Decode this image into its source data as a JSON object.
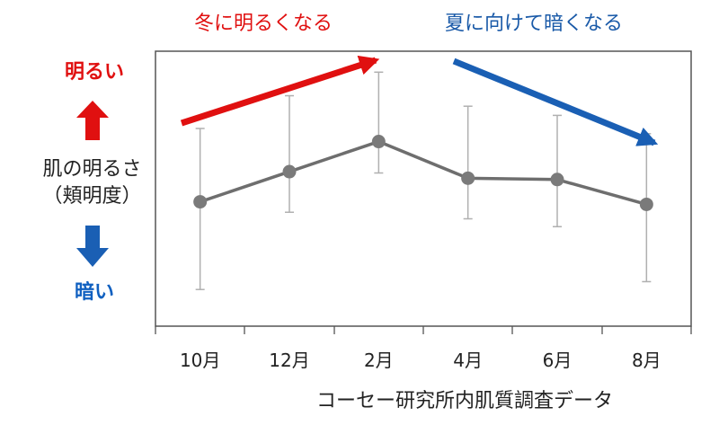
{
  "labels": {
    "bright": "明るい",
    "dark": "暗い",
    "axis_line1": "肌の明るさ",
    "axis_line2": "（頬明度）",
    "trend_up": "冬に明るくなる",
    "trend_down": "夏に向けて暗くなる",
    "source": "コーセー研究所内肌質調査データ"
  },
  "colors": {
    "red": "#e01010",
    "blue": "#1a5fb4",
    "line": "#6e6e6e",
    "marker": "#7a7a7a",
    "errorbar": "#b0b0b0",
    "frame": "#555555"
  },
  "chart_data": {
    "type": "line",
    "categories": [
      "10月",
      "12月",
      "2月",
      "4月",
      "6月",
      "8月"
    ],
    "values": [
      0.35,
      0.58,
      0.81,
      0.53,
      0.52,
      0.33
    ],
    "error_low": [
      -0.32,
      0.27,
      0.57,
      0.22,
      0.16,
      -0.26
    ],
    "error_high": [
      0.91,
      1.16,
      1.34,
      1.08,
      1.01,
      0.87
    ],
    "ylim": [
      -0.6,
      1.5
    ],
    "y_ticks_shown": false,
    "grid": false,
    "legend": "none",
    "xlabel": "",
    "ylabel": "肌の明るさ（頬明度）"
  }
}
